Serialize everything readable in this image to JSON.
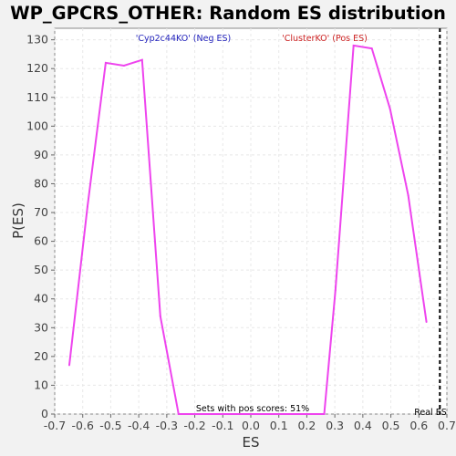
{
  "chart_data": {
    "type": "line",
    "title": "WP_GPCRS_OTHER: Random ES distribution",
    "xlabel": "ES",
    "ylabel": "P(ES)",
    "xlim": [
      -0.7,
      0.7
    ],
    "ylim": [
      0,
      134
    ],
    "x_ticks": [
      "-0.7",
      "-0.6",
      "-0.5",
      "-0.4",
      "-0.3",
      "-0.2",
      "-0.1",
      "0.0",
      "0.1",
      "0.2",
      "0.3",
      "0.4",
      "0.5",
      "0.6",
      "0.7"
    ],
    "y_ticks": [
      "0",
      "10",
      "20",
      "30",
      "40",
      "50",
      "60",
      "70",
      "80",
      "90",
      "100",
      "110",
      "120",
      "130"
    ],
    "grid": true,
    "series": [
      {
        "color": "#ee44ee",
        "points": [
          [
            -0.648,
            17
          ],
          [
            -0.583,
            72
          ],
          [
            -0.518,
            122
          ],
          [
            -0.453,
            121
          ],
          [
            -0.388,
            123
          ],
          [
            -0.323,
            34
          ],
          [
            -0.258,
            0
          ],
          [
            -0.193,
            0
          ],
          [
            -0.128,
            0
          ],
          [
            -0.063,
            0
          ],
          [
            0.002,
            0
          ],
          [
            0.067,
            0
          ],
          [
            0.132,
            0
          ],
          [
            0.197,
            0
          ],
          [
            0.262,
            0
          ],
          [
            0.302,
            43
          ],
          [
            0.367,
            128
          ],
          [
            0.432,
            127
          ],
          [
            0.497,
            106
          ],
          [
            0.562,
            76
          ],
          [
            0.627,
            32
          ]
        ]
      }
    ],
    "real_es": 0.675,
    "annotations": {
      "neg": "'Cyp2c44KO' (Neg ES)",
      "pos": "'ClusterKO' (Pos ES)",
      "pos_scores": "Sets with pos scores: 51%",
      "real_es": "Real ES"
    },
    "colors": {
      "background": "#ffffff",
      "grid": "#e8e8e8",
      "neg_label": "#2222bb",
      "pos_label": "#cc2222",
      "real_es_line": "#000000"
    }
  }
}
